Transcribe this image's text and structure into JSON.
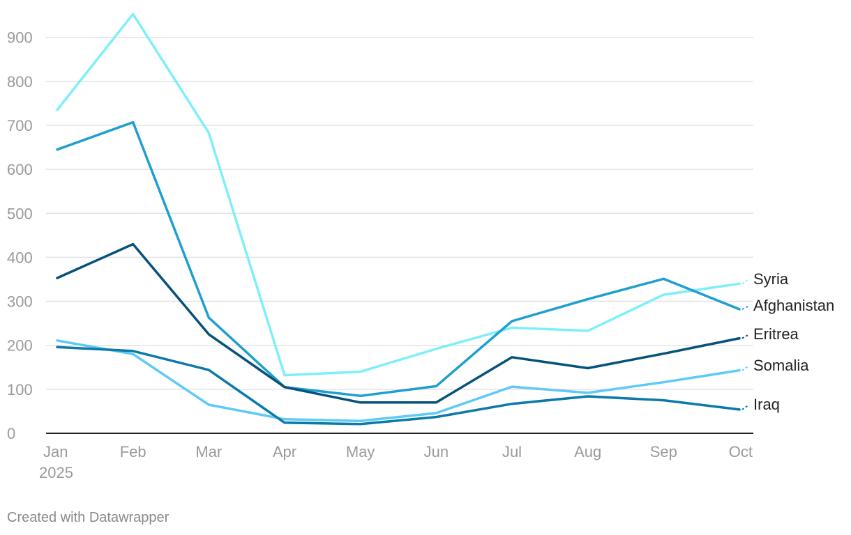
{
  "chart_data": {
    "type": "line",
    "title": "",
    "xlabel": "",
    "ylabel": "",
    "categories": [
      "Jan",
      "Feb",
      "Mar",
      "Apr",
      "May",
      "Jun",
      "Jul",
      "Aug",
      "Sep",
      "Oct"
    ],
    "year_label": "2025",
    "ylim": [
      0,
      950
    ],
    "yticks": [
      0,
      100,
      200,
      300,
      400,
      500,
      600,
      700,
      800,
      900
    ],
    "grid": true,
    "legend": "direct labels at right end of lines",
    "series": [
      {
        "name": "Syria",
        "color": "#7eeffa",
        "values": [
          735,
          953,
          683,
          132,
          140,
          192,
          240,
          233,
          315,
          340
        ]
      },
      {
        "name": "Afghanistan",
        "color": "#1e9fd0",
        "values": [
          645,
          707,
          263,
          105,
          85,
          107,
          255,
          305,
          351,
          282
        ]
      },
      {
        "name": "Eritrea",
        "color": "#05527a",
        "values": [
          353,
          430,
          225,
          105,
          70,
          70,
          173,
          148,
          181,
          216
        ]
      },
      {
        "name": "Somalia",
        "color": "#5ecaf5",
        "values": [
          211,
          180,
          65,
          32,
          28,
          46,
          106,
          92,
          116,
          143
        ]
      },
      {
        "name": "Iraq",
        "color": "#0c79a8",
        "values": [
          196,
          187,
          144,
          24,
          21,
          37,
          67,
          84,
          75,
          54
        ]
      }
    ]
  },
  "footer": {
    "credit": "Created with Datawrapper"
  }
}
